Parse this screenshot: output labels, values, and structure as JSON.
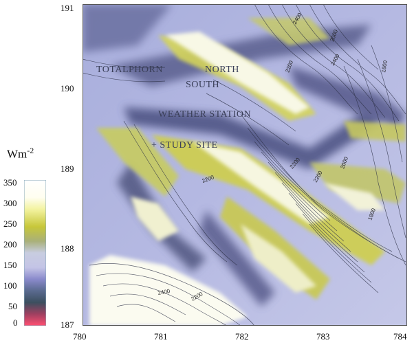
{
  "map": {
    "x_ticks": [
      "780",
      "781",
      "782",
      "783",
      "784"
    ],
    "y_ticks": [
      "191",
      "190",
      "189",
      "188",
      "187"
    ],
    "place_labels": {
      "totalphorn": "TOTALPHORN",
      "north": "NORTH",
      "south": "SOUTH",
      "weather_station": "WEATHER STATION",
      "study_site": "+ STUDY SITE"
    },
    "contour_labels": [
      "2400",
      "2200",
      "2200",
      "2200",
      "2400",
      "2200",
      "2000",
      "1800",
      "2000",
      "2200",
      "2400",
      "1800"
    ]
  },
  "colorbar": {
    "unit_base": "Wm",
    "unit_exp": "-2",
    "ticks": [
      "350",
      "300",
      "250",
      "200",
      "150",
      "100",
      "50",
      "0"
    ],
    "colors": [
      "#ffffff",
      "#f3f3a0",
      "#c7c73a",
      "#a9b07a",
      "#c4c4e6",
      "#7c7cbf",
      "#3c4f5f",
      "#e04060"
    ]
  }
}
